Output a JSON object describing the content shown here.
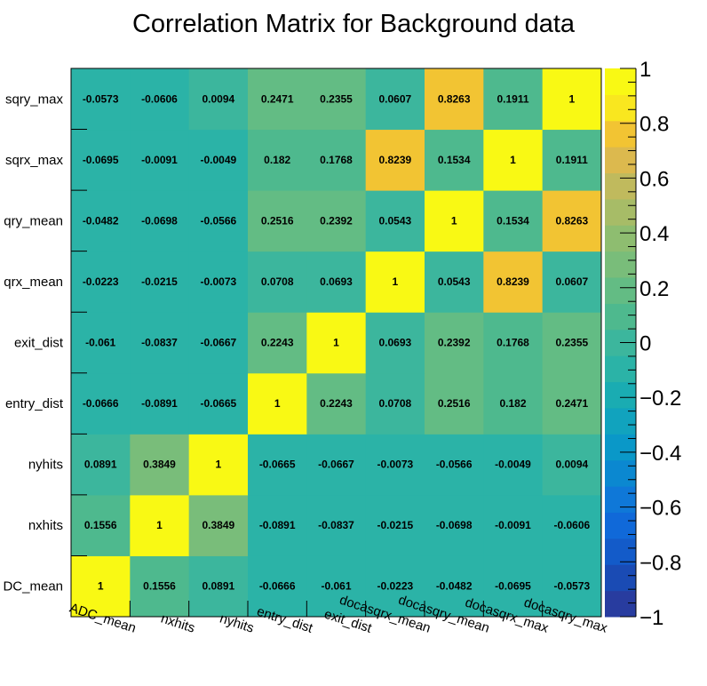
{
  "chart_data": {
    "type": "heatmap",
    "title": "Correlation Matrix for Background data",
    "variables": [
      "ADC_mean",
      "nxhits",
      "nyhits",
      "entry_dist",
      "exit_dist",
      "docasqrx_mean",
      "docasqry_mean",
      "docasqrx_max",
      "docasqry_max"
    ],
    "y_tick_labels_visible": [
      "DC_mean",
      "nxhits",
      "nyhits",
      "entry_dist",
      "exit_dist",
      "qrx_mean",
      "qry_mean",
      "sqrx_max",
      "sqry_max"
    ],
    "matrix": [
      [
        1,
        0.1556,
        0.0891,
        -0.0666,
        -0.061,
        -0.0223,
        -0.0482,
        -0.0695,
        -0.0573
      ],
      [
        0.1556,
        1,
        0.3849,
        -0.0891,
        -0.0837,
        -0.0215,
        -0.0698,
        -0.0091,
        -0.0606
      ],
      [
        0.0891,
        0.3849,
        1,
        -0.0665,
        -0.0667,
        -0.0073,
        -0.0566,
        -0.0049,
        0.0094
      ],
      [
        -0.0666,
        -0.0891,
        -0.0665,
        1,
        0.2243,
        0.0708,
        0.2516,
        0.182,
        0.2471
      ],
      [
        -0.061,
        -0.0837,
        -0.0667,
        0.2243,
        1,
        0.0693,
        0.2392,
        0.1768,
        0.2355
      ],
      [
        -0.0223,
        -0.0215,
        -0.0073,
        0.0708,
        0.0693,
        1,
        0.0543,
        0.8239,
        0.0607
      ],
      [
        -0.0482,
        -0.0698,
        -0.0566,
        0.2516,
        0.2392,
        0.0543,
        1,
        0.1534,
        0.8263
      ],
      [
        -0.0695,
        -0.0091,
        -0.0049,
        0.182,
        0.1768,
        0.8239,
        0.1534,
        1,
        0.1911
      ],
      [
        -0.0573,
        -0.0606,
        0.0094,
        0.2471,
        0.2355,
        0.0607,
        0.8263,
        0.1911,
        1
      ]
    ],
    "zlim": [
      -1,
      1
    ],
    "color_bins": 20,
    "palette": [
      "#283c9f",
      "#1a4bb4",
      "#135bc9",
      "#1069d9",
      "#0f78d8",
      "#0b88d0",
      "#0a98c8",
      "#11a3be",
      "#1aacb2",
      "#2bb3a7",
      "#3cb69d",
      "#4eb98e",
      "#63bc84",
      "#79bd7a",
      "#8ebd70",
      "#a7bc67",
      "#c0ba5d",
      "#dcb94e",
      "#f2c433",
      "#f9e71f",
      "#f9f914"
    ],
    "z_tick_values": [
      -1,
      -0.8,
      -0.6,
      -0.4,
      -0.2,
      0,
      0.2,
      0.4,
      0.6,
      0.8,
      1
    ],
    "z_tick_labels": [
      "−1",
      "−0.8",
      "−0.6",
      "−0.4",
      "−0.2",
      "0",
      "0.2",
      "0.4",
      "0.6",
      "0.8",
      "1"
    ]
  }
}
